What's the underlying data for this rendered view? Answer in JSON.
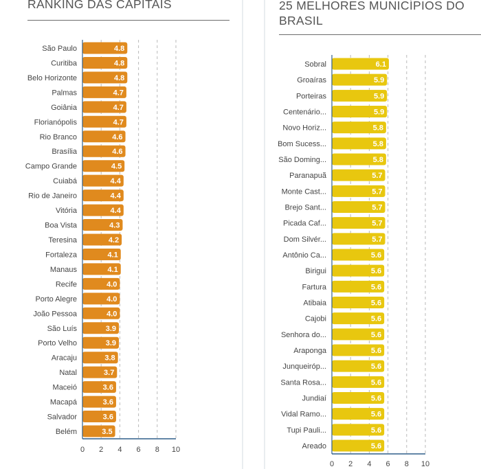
{
  "panels": [
    {
      "title": "RANKING DAS CAPITAIS",
      "chart_data": {
        "type": "bar",
        "orientation": "horizontal",
        "categories": [
          "São Paulo",
          "Curitiba",
          "Belo Horizonte",
          "Palmas",
          "Goiânia",
          "Florianópolis",
          "Rio Branco",
          "Brasília",
          "Campo Grande",
          "Cuiabá",
          "Rio de Janeiro",
          "Vitória",
          "Boa Vista",
          "Teresina",
          "Fortaleza",
          "Manaus",
          "Recife",
          "Porto Alegre",
          "João Pessoa",
          "São Luís",
          "Porto Velho",
          "Aracaju",
          "Natal",
          "Maceió",
          "Macapá",
          "Salvador",
          "Belém"
        ],
        "values": [
          4.8,
          4.8,
          4.8,
          4.7,
          4.7,
          4.7,
          4.6,
          4.6,
          4.5,
          4.4,
          4.4,
          4.4,
          4.3,
          4.2,
          4.1,
          4.1,
          4.0,
          4.0,
          4.0,
          3.9,
          3.9,
          3.8,
          3.7,
          3.6,
          3.6,
          3.6,
          3.5
        ],
        "value_labels": [
          "4.8",
          "4.8",
          "4.8",
          "4.7",
          "4.7",
          "4.7",
          "4.6",
          "4.6",
          "4.5",
          "4.4",
          "4.4",
          "4.4",
          "4.3",
          "4.2",
          "4.1",
          "4.1",
          "4.0",
          "4.0",
          "4.0",
          "3.9",
          "3.9",
          "3.8",
          "3.7",
          "3.6",
          "3.6",
          "3.6",
          "3.5"
        ],
        "xticks": [
          0,
          2,
          4,
          6,
          8,
          10
        ],
        "xlim": [
          0,
          10
        ],
        "color": "#e08a1e",
        "grid": "dashed vertical"
      }
    },
    {
      "title": "25 MELHORES MUNICÍPIOS DO BRASIL",
      "chart_data": {
        "type": "bar",
        "orientation": "horizontal",
        "categories": [
          "Sobral",
          "Groaíras",
          "Porteiras",
          "Centenário...",
          "Novo Horiz...",
          "Bom Sucess...",
          "São Doming...",
          "Paranapuã",
          "Monte Cast...",
          "Brejo Sant...",
          "Picada Caf...",
          "Dom Silvér...",
          "Antônio Ca...",
          "Birigui",
          "Fartura",
          "Atibaia",
          "Cajobi",
          "Senhora do...",
          "Araponga",
          "Junqueiróp...",
          "Santa Rosa...",
          "Jundiaí",
          "Vidal Ramo...",
          "Tupi Pauli...",
          "Areado"
        ],
        "values": [
          6.1,
          5.9,
          5.9,
          5.9,
          5.8,
          5.8,
          5.8,
          5.7,
          5.7,
          5.7,
          5.7,
          5.7,
          5.6,
          5.6,
          5.6,
          5.6,
          5.6,
          5.6,
          5.6,
          5.6,
          5.6,
          5.6,
          5.6,
          5.6,
          5.6
        ],
        "value_labels": [
          "6.1",
          "5.9",
          "5.9",
          "5.9",
          "5.8",
          "5.8",
          "5.8",
          "5.7",
          "5.7",
          "5.7",
          "5.7",
          "5.7",
          "5.6",
          "5.6",
          "5.6",
          "5.6",
          "5.6",
          "5.6",
          "5.6",
          "5.6",
          "5.6",
          "5.6",
          "5.6",
          "5.6",
          "5.6"
        ],
        "xticks": [
          0,
          2,
          4,
          6,
          8,
          10
        ],
        "xlim": [
          0,
          10
        ],
        "color": "#e8c70f",
        "grid": "dashed vertical"
      }
    }
  ]
}
